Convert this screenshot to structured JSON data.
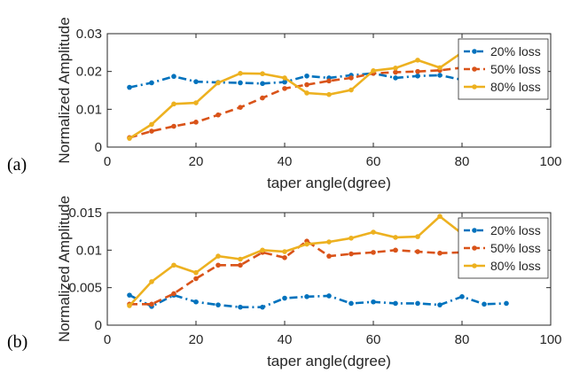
{
  "chart_data": [
    {
      "type": "line",
      "panel_label": "(a)",
      "xlabel": "taper angle(dgree)",
      "ylabel": "Normalized Amplitude",
      "xlim": [
        0,
        100
      ],
      "ylim": [
        0,
        0.03
      ],
      "xticks": [
        "0",
        "20",
        "40",
        "60",
        "80",
        "100"
      ],
      "yticks": [
        "0",
        "0.01",
        "0.02",
        "0.03"
      ],
      "legend_position": "top-right",
      "grid": false,
      "x": [
        5,
        10,
        15,
        20,
        25,
        30,
        35,
        40,
        45,
        50,
        55,
        60,
        65,
        70,
        75,
        80,
        85,
        90
      ],
      "series": [
        {
          "name": "20% loss",
          "color": "#0072BD",
          "dash": "dash-dot",
          "values": [
            0.0158,
            0.017,
            0.0187,
            0.0173,
            0.0171,
            0.017,
            0.0168,
            0.0172,
            0.0188,
            0.0183,
            0.019,
            0.0195,
            0.0183,
            0.0188,
            0.019,
            0.0178,
            0.0182,
            0.018
          ]
        },
        {
          "name": "50% loss",
          "color": "#D95319",
          "dash": "dash",
          "values": [
            0.0025,
            0.0042,
            0.0055,
            0.0066,
            0.0085,
            0.0105,
            0.013,
            0.0155,
            0.0165,
            0.0175,
            0.0183,
            0.0195,
            0.0198,
            0.02,
            0.0203,
            0.021,
            0.0215,
            0.022
          ]
        },
        {
          "name": "80% loss",
          "color": "#EDB120",
          "dash": "solid",
          "values": [
            0.0023,
            0.006,
            0.0114,
            0.0117,
            0.017,
            0.0195,
            0.0194,
            0.0183,
            0.0143,
            0.0139,
            0.0151,
            0.0202,
            0.0209,
            0.023,
            0.021,
            0.025,
            0.0265,
            0.028
          ]
        }
      ]
    },
    {
      "type": "line",
      "panel_label": "(b)",
      "xlabel": "taper angle(dgree)",
      "ylabel": "Normalized Amplitude",
      "xlim": [
        0,
        100
      ],
      "ylim": [
        0,
        0.015
      ],
      "xticks": [
        "0",
        "20",
        "40",
        "60",
        "80",
        "100"
      ],
      "yticks": [
        "0",
        "0.005",
        "0.01",
        "0.015"
      ],
      "legend_position": "top-right",
      "grid": false,
      "x": [
        5,
        10,
        15,
        20,
        25,
        30,
        35,
        40,
        45,
        50,
        55,
        60,
        65,
        70,
        75,
        80,
        85,
        90
      ],
      "series": [
        {
          "name": "20% loss",
          "color": "#0072BD",
          "dash": "dash-dot",
          "values": [
            0.004,
            0.0025,
            0.004,
            0.0031,
            0.0027,
            0.0024,
            0.0024,
            0.0036,
            0.0038,
            0.0039,
            0.0029,
            0.0031,
            0.0029,
            0.0029,
            0.0027,
            0.0038,
            0.0028,
            0.0029
          ]
        },
        {
          "name": "50% loss",
          "color": "#D95319",
          "dash": "dash",
          "values": [
            0.0028,
            0.0028,
            0.0042,
            0.0062,
            0.008,
            0.008,
            0.0097,
            0.009,
            0.0112,
            0.0092,
            0.0095,
            0.0097,
            0.01,
            0.0098,
            0.0096,
            0.0097,
            0.0098,
            0.0099
          ]
        },
        {
          "name": "80% loss",
          "color": "#EDB120",
          "dash": "solid",
          "values": [
            0.0026,
            0.0058,
            0.008,
            0.007,
            0.0092,
            0.0088,
            0.01,
            0.0098,
            0.0108,
            0.0111,
            0.0116,
            0.0124,
            0.0117,
            0.0118,
            0.0145,
            0.0122,
            0.0121,
            0.012
          ]
        }
      ]
    }
  ]
}
